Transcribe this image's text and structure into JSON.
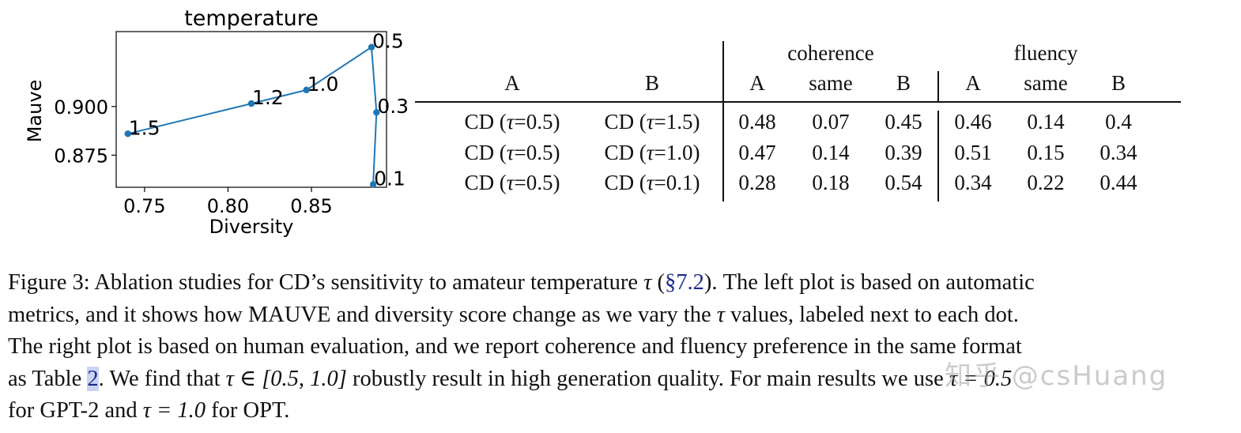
{
  "chart_data": {
    "type": "line",
    "title": "temperature",
    "xlabel": "Diversity",
    "ylabel": "Mauve",
    "xlim": [
      0.733,
      0.895
    ],
    "ylim": [
      0.8585,
      0.9385
    ],
    "xticks": [
      "0.75",
      "0.80",
      "0.85"
    ],
    "xtick_values": [
      0.75,
      0.8,
      0.85
    ],
    "yticks": [
      "0.875",
      "0.900"
    ],
    "ytick_values": [
      0.875,
      0.9
    ],
    "grid": false,
    "line_color": "#1f77b4",
    "points": [
      {
        "x": 0.74,
        "y": 0.886,
        "label": "1.5"
      },
      {
        "x": 0.814,
        "y": 0.9015,
        "label": "1.2"
      },
      {
        "x": 0.847,
        "y": 0.9085,
        "label": "1.0"
      },
      {
        "x": 0.886,
        "y": 0.9305,
        "label": "0.5"
      },
      {
        "x": 0.889,
        "y": 0.897,
        "label": "0.3"
      },
      {
        "x": 0.887,
        "y": 0.86,
        "label": "0.1"
      }
    ]
  },
  "table": {
    "group_headers": [
      "coherence",
      "fluency"
    ],
    "col_headers": [
      "A",
      "B",
      "A",
      "same",
      "B",
      "A",
      "same",
      "B"
    ],
    "rows": [
      {
        "a_pre": "CD (",
        "a_tau": "τ",
        "a_post": "=0.5)",
        "b_pre": "CD (",
        "b_tau": "τ",
        "b_post": "=1.5)",
        "vals": [
          "0.48",
          "0.07",
          "0.45",
          "0.46",
          "0.14",
          "0.4"
        ]
      },
      {
        "a_pre": "CD (",
        "a_tau": "τ",
        "a_post": "=0.5)",
        "b_pre": "CD (",
        "b_tau": "τ",
        "b_post": "=1.0)",
        "vals": [
          "0.47",
          "0.14",
          "0.39",
          "0.51",
          "0.15",
          "0.34"
        ]
      },
      {
        "a_pre": "CD (",
        "a_tau": "τ",
        "a_post": "=0.5)",
        "b_pre": "CD (",
        "b_tau": "τ",
        "b_post": "=0.1)",
        "vals": [
          "0.28",
          "0.18",
          "0.54",
          "0.34",
          "0.22",
          "0.44"
        ]
      }
    ]
  },
  "caption": {
    "l1_a": "Figure 3:  Ablation studies for CD’s sensitivity to amateur temperature ",
    "l1_tau": "τ",
    "l1_b": " (",
    "l1_ref": "§7.2",
    "l1_c": "). The left plot is based on automatic",
    "l2_a": "metrics, and it shows how MAUVE and diversity score change as we vary the ",
    "l2_tau": "τ",
    "l2_b": " values, labeled next to each dot.",
    "l3": "The right plot is based on human evaluation, and we report coherence and fluency preference in the same format",
    "l4_a": "as Table ",
    "l4_ref": "2",
    "l4_b": ". We find that ",
    "l4_math": "τ ∈ [0.5, 1.0]",
    "l4_c": " robustly result in high generation quality. For main results we use ",
    "l4_math2": "τ = 0.5",
    "l5_a": "for GPT-2 and ",
    "l5_math": "τ = 1.0",
    "l5_b": " for OPT."
  },
  "watermark": "知乎 @csHuang"
}
